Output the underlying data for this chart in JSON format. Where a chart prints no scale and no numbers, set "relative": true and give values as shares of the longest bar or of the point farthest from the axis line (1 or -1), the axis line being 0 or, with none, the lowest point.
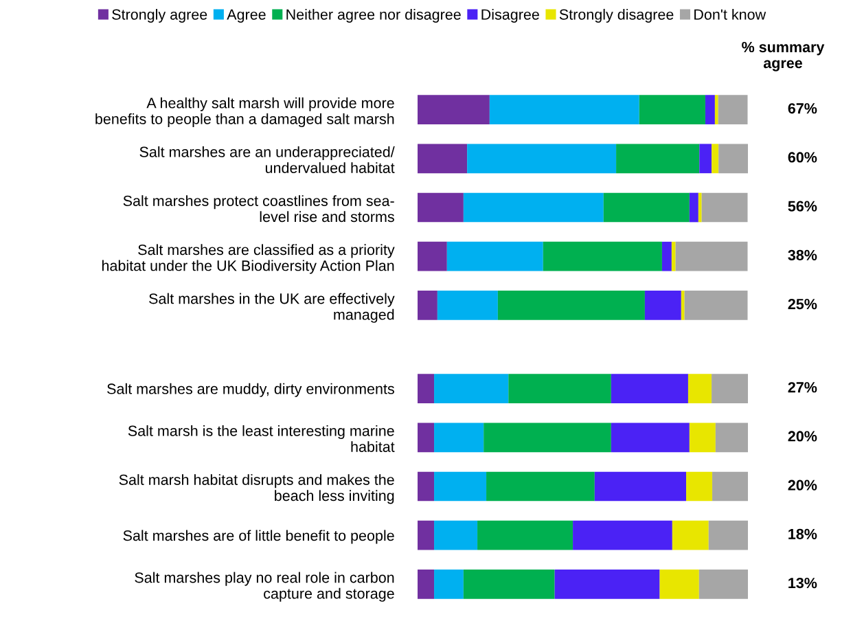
{
  "chart_data": [
    {
      "type": "bar",
      "orientation": "horizontal",
      "stacked": true,
      "relative": true,
      "legend": "top",
      "categories": [
        "A healthy salt marsh will provide more\nbenefits to people than a damaged salt marsh",
        "Salt marshes are an underappreciated/\nundervalued habitat",
        "Salt marshes protect coastlines from sea-\nlevel rise and storms",
        "Salt marshes are classified as a priority\nhabitat under the UK Biodiversity Action Plan",
        "Salt marshes in the UK are effectively\nmanaged"
      ],
      "series": [
        {
          "name": "Strongly agree",
          "color": "#7030a0",
          "values": [
            0.218,
            0.15,
            0.139,
            0.089,
            0.06
          ]
        },
        {
          "name": "Agree",
          "color": "#00b0f0",
          "values": [
            0.453,
            0.451,
            0.424,
            0.291,
            0.183
          ]
        },
        {
          "name": "Neither agree nor disagree",
          "color": "#00b050",
          "values": [
            0.2,
            0.252,
            0.26,
            0.36,
            0.445
          ]
        },
        {
          "name": "Disagree",
          "color": "#4b22f5",
          "values": [
            0.029,
            0.037,
            0.027,
            0.029,
            0.11
          ]
        },
        {
          "name": "Strongly disagree",
          "color": "#e8e600",
          "values": [
            0.01,
            0.021,
            0.01,
            0.012,
            0.01
          ]
        },
        {
          "name": "Don't know",
          "color": "#a6a6a6",
          "values": [
            0.089,
            0.089,
            0.139,
            0.218,
            0.191
          ]
        }
      ],
      "annotations": [
        "% summary\nagree",
        "67%",
        "60%",
        "56%",
        "38%",
        "25%"
      ]
    },
    {
      "type": "bar",
      "orientation": "horizontal",
      "stacked": true,
      "relative": true,
      "categories": [
        "Salt marshes are muddy, dirty environments",
        "Salt marsh is the least interesting marine\nhabitat",
        "Salt marsh habitat disrupts and makes the\nbeach less inviting",
        "Salt marshes are of little benefit to people",
        "Salt marshes play no real role in carbon\ncapture and storage"
      ],
      "series": [
        {
          "color": "#7030a0",
          "values": [
            0.05,
            0.05,
            0.05,
            0.05,
            0.05
          ]
        },
        {
          "color": "#00b0f0",
          "values": [
            0.225,
            0.15,
            0.158,
            0.131,
            0.089
          ]
        },
        {
          "color": "#00b050",
          "values": [
            0.311,
            0.386,
            0.328,
            0.289,
            0.276
          ]
        },
        {
          "color": "#4b22f5",
          "values": [
            0.233,
            0.237,
            0.277,
            0.301,
            0.318
          ]
        },
        {
          "color": "#e8e600",
          "values": [
            0.071,
            0.079,
            0.079,
            0.11,
            0.119
          ]
        },
        {
          "color": "#a6a6a6",
          "values": [
            0.11,
            0.098,
            0.108,
            0.119,
            0.148
          ]
        }
      ],
      "annotations": [
        "27%",
        "20%",
        "20%",
        "18%",
        "13%"
      ]
    }
  ]
}
